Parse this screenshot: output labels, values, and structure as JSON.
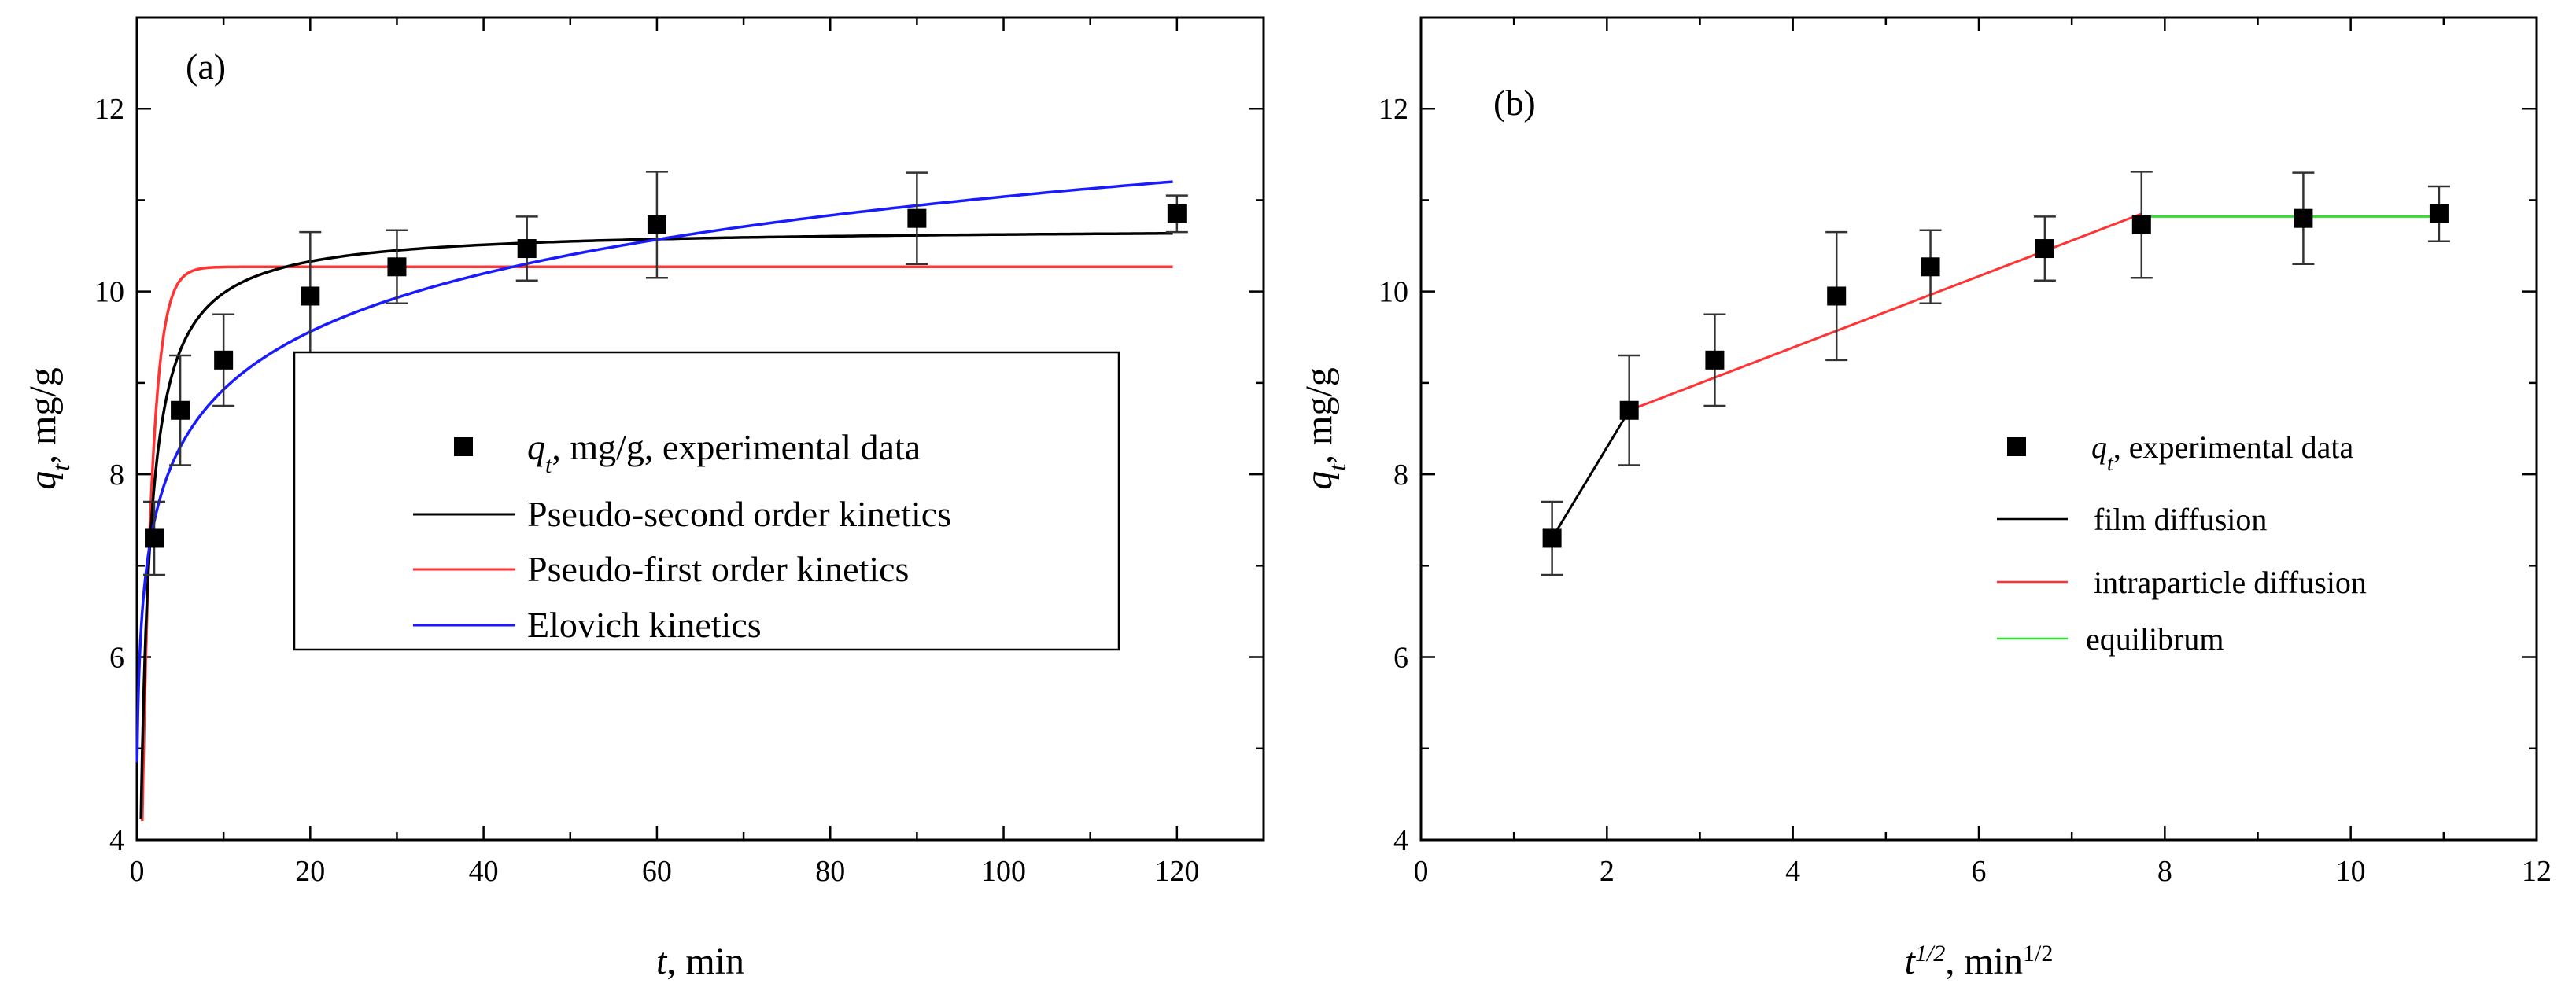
{
  "chart_data": [
    {
      "type": "scatter",
      "panel_label": "(a)",
      "xlabel": {
        "var": "t",
        "unit": ", min"
      },
      "ylabel": {
        "var": "q",
        "sub": "t",
        "unit": ", mg/g"
      },
      "xlim": [
        0,
        130
      ],
      "ylim": [
        4,
        13
      ],
      "x_ticks": [
        0,
        20,
        40,
        60,
        80,
        100,
        120
      ],
      "y_ticks": [
        4,
        6,
        8,
        10,
        12
      ],
      "legend": {
        "position": "center-right",
        "entries": [
          {
            "key": "experimental",
            "var": "q",
            "sub": "t",
            "text": ", mg/g, experimental data",
            "marker": "square",
            "color": "#000000"
          },
          {
            "key": "pso",
            "text": "Pseudo-second order kinetics",
            "marker": "line",
            "color": "#000000"
          },
          {
            "key": "pfo",
            "text": "Pseudo-first order kinetics",
            "marker": "line",
            "color": "#ff3333"
          },
          {
            "key": "elovich",
            "text": "Elovich kinetics",
            "marker": "line",
            "color": "#1a1aff"
          }
        ]
      },
      "experimental": {
        "x": [
          2,
          5,
          10,
          20,
          30,
          45,
          60,
          90,
          120
        ],
        "y": [
          7.3,
          8.7,
          9.25,
          9.95,
          10.27,
          10.47,
          10.73,
          10.8,
          10.85
        ],
        "err": [
          0.4,
          0.6,
          0.5,
          0.7,
          0.4,
          0.35,
          0.58,
          0.5,
          0.2
        ]
      },
      "models": {
        "pso": {
          "qe": 10.7,
          "k": 0.13,
          "color": "#000000"
        },
        "pfo": {
          "qe": 10.27,
          "k": 0.85,
          "color": "#ff3333"
        },
        "elovich": {
          "a": 6.8,
          "b": 0.92,
          "t0": 0.1,
          "color": "#1a1aff"
        }
      }
    },
    {
      "type": "scatter",
      "panel_label": "(b)",
      "xlabel": {
        "var": "t",
        "sup": "1/2",
        "unit": ", min",
        "unit_sup": "1/2"
      },
      "ylabel": {
        "var": "q",
        "sub": "t",
        "unit": ", mg/g"
      },
      "xlim": [
        0,
        12
      ],
      "ylim": [
        4,
        13
      ],
      "x_ticks": [
        0,
        2,
        4,
        6,
        8,
        10,
        12
      ],
      "y_ticks": [
        4,
        6,
        8,
        10,
        12
      ],
      "legend": {
        "position": "center-right",
        "entries": [
          {
            "key": "experimental",
            "var": "q",
            "sub": "t",
            "text": ", experimental data",
            "marker": "square",
            "color": "#000000"
          },
          {
            "key": "film",
            "text": "film diffusion",
            "marker": "line",
            "color": "#000000"
          },
          {
            "key": "intra",
            "text": "intraparticle diffusion",
            "marker": "line",
            "color": "#ff3333"
          },
          {
            "key": "equil",
            "text": "equilibrum",
            "marker": "line",
            "color": "#33dd33"
          }
        ]
      },
      "experimental": {
        "x": [
          1.41,
          2.24,
          3.16,
          4.47,
          5.48,
          6.71,
          7.75,
          9.49,
          10.95
        ],
        "y": [
          7.3,
          8.7,
          9.25,
          9.95,
          10.27,
          10.47,
          10.73,
          10.8,
          10.85
        ],
        "err": [
          0.4,
          0.6,
          0.5,
          0.7,
          0.4,
          0.35,
          0.58,
          0.5,
          0.3
        ]
      },
      "segments": [
        {
          "name": "film diffusion",
          "color": "#000000",
          "x": [
            1.41,
            2.24
          ],
          "y": [
            7.3,
            8.7
          ]
        },
        {
          "name": "intraparticle diffusion",
          "color": "#ff3333",
          "x": [
            2.24,
            7.75
          ],
          "y": [
            8.7,
            10.85
          ]
        },
        {
          "name": "equilibrum",
          "color": "#33dd33",
          "x": [
            7.75,
            10.95
          ],
          "y": [
            10.82,
            10.82
          ]
        }
      ]
    }
  ]
}
